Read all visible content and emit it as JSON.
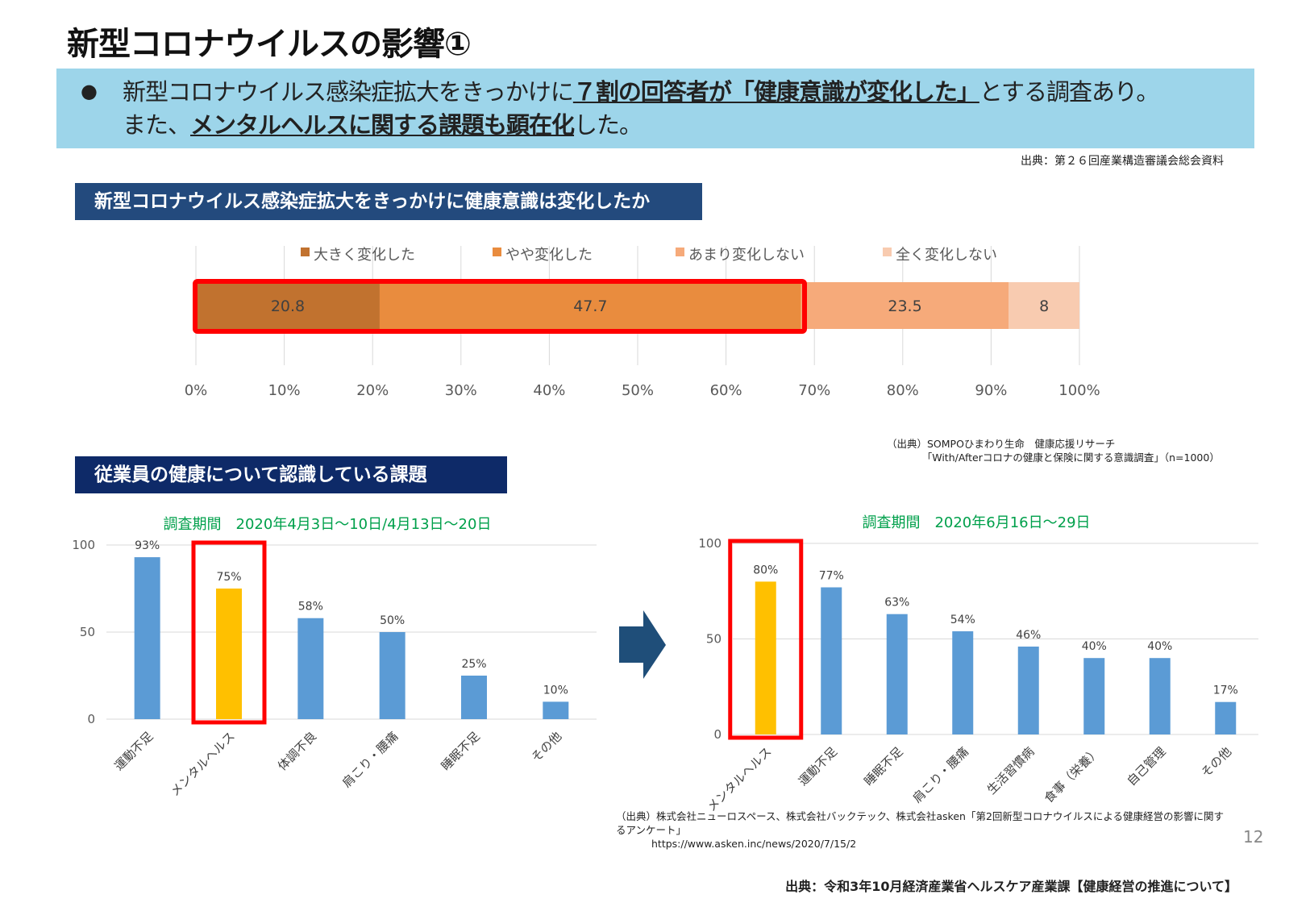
{
  "title": "新型コロナウイルスの影響①",
  "banner": {
    "bullet": "●",
    "line1_a": "新型コロナウイルス感染症拡大をきっかけに",
    "line1_b": "７割の回答者が「健康意識が変化した」",
    "line1_c": "とする調査あり。",
    "line2_a": "また、",
    "line2_b": "メンタルヘルスに関する課題も顕在化",
    "line2_c": "した。",
    "color": "#9dd5ea"
  },
  "source_top": "出典：第２６回産業構造審議会総会資料",
  "section1": "新型コロナウイルス感染症拡大をきっかけに健康意識は変化したか",
  "section2": "従業員の健康について認識している課題",
  "source_sompo": "（出典）SOMPOひまわり生命　健康応援リサーチ\n　　　　「With/Afterコロナの健康と保険に関する意識調査」（n=1000）",
  "source_asken_1": "（出典）株式会社ニューロスペース、株式会社バックテック、株式会社asken「第2回新型コロナウイルスによる健康経営の影響に関するアンケート」",
  "source_asken_2": "https://www.asken.inc/news/2020/7/15/2",
  "page_number": "12",
  "source_bottom": "出典：令和3年10月経済産業省ヘルスケア産業課【健康経営の推進について】",
  "chart_data": [
    {
      "type": "bar",
      "orientation": "horizontal-stacked",
      "xlim": [
        0,
        100
      ],
      "ticks": [
        "0%",
        "10%",
        "20%",
        "30%",
        "40%",
        "50%",
        "60%",
        "70%",
        "80%",
        "90%",
        "100%"
      ],
      "series": [
        {
          "name": "大きく変化した",
          "values": [
            20.8
          ],
          "color": "#c1722f"
        },
        {
          "name": "やや変化した",
          "values": [
            47.7
          ],
          "color": "#e98c3e"
        },
        {
          "name": "あまり変化しない",
          "values": [
            23.5
          ],
          "color": "#f6aa7a"
        },
        {
          "name": "全く変化しない",
          "values": [
            8
          ],
          "color": "#f8cbb0"
        }
      ],
      "data_labels": [
        "20.8",
        "47.7",
        "23.5",
        "8"
      ],
      "legend": "top",
      "grid": true,
      "highlight": "大きく変化した + やや変化した"
    },
    {
      "type": "bar",
      "title": "調査期間　2020年4月3日～10日/4月13日～20日",
      "ylim": [
        0,
        100
      ],
      "yticks": [
        "0",
        "50",
        "100"
      ],
      "categories": [
        "運動不足",
        "メンタルヘルス",
        "体調不良",
        "肩こり・腰痛",
        "睡眠不足",
        "その他"
      ],
      "values": [
        93,
        75,
        58,
        50,
        25,
        10
      ],
      "labels": [
        "93%",
        "75%",
        "58%",
        "50%",
        "25%",
        "10%"
      ],
      "highlight": "メンタルヘルス",
      "color": "#5b9bd5",
      "highlight_color": "#ffc000"
    },
    {
      "type": "bar",
      "title": "調査期間　2020年6月16日～29日",
      "ylim": [
        0,
        100
      ],
      "yticks": [
        "0",
        "50",
        "100"
      ],
      "categories": [
        "メンタルヘルス",
        "運動不足",
        "睡眠不足",
        "肩こり・腰痛",
        "生活習慣病",
        "食事（栄養）",
        "自己管理",
        "その他"
      ],
      "values": [
        80,
        77,
        63,
        54,
        46,
        40,
        40,
        17
      ],
      "labels": [
        "80%",
        "77%",
        "63%",
        "54%",
        "46%",
        "40%",
        "40%",
        "17%"
      ],
      "highlight": "メンタルヘルス",
      "color": "#5b9bd5",
      "highlight_color": "#ffc000"
    }
  ]
}
